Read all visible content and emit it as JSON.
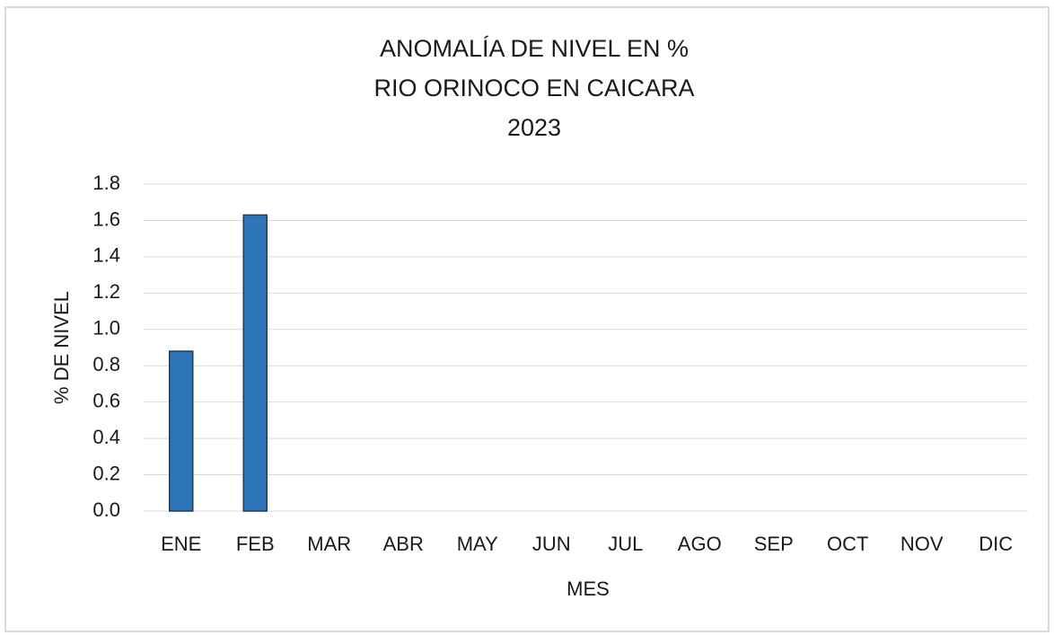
{
  "chart_data": {
    "type": "bar",
    "title": [
      "ANOMALÍA DE NIVEL EN %",
      "RIO ORINOCO EN CAICARA",
      "2023"
    ],
    "x_label": "MES",
    "y_label": "% DE NIVEL",
    "categories": [
      "ENE",
      "FEB",
      "MAR",
      "ABR",
      "MAY",
      "JUN",
      "JUL",
      "AGO",
      "SEP",
      "OCT",
      "NOV",
      "DIC"
    ],
    "values": [
      0.88,
      1.63,
      null,
      null,
      null,
      null,
      null,
      null,
      null,
      null,
      null,
      null
    ],
    "color": "#2e75b6",
    "ylim": [
      0,
      1.8
    ],
    "yticks": [
      {
        "value": 0,
        "label": "0.0"
      },
      0.2,
      0.4,
      0.6,
      0.8,
      {
        "value": 1,
        "label": "1.0"
      },
      1.2,
      1.4,
      1.6,
      1.8
    ],
    "grid": true
  }
}
